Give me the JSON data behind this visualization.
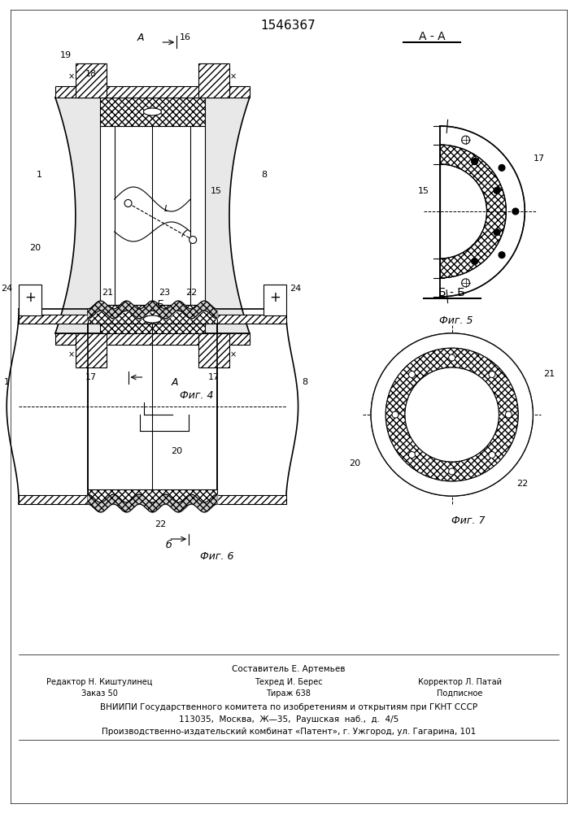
{
  "patent_number": "1546367",
  "bg": "#ffffff",
  "lc": "#000000",
  "fig4_label": "Фиг. 4",
  "fig5_label": "Фиг. 5",
  "fig6_label": "Фиг. 6",
  "fig7_label": "Фиг. 7",
  "section_aa": "A - A",
  "section_bb": "Б - Б",
  "footer_col1_line1": "Редактор Н. Киштулинец",
  "footer_col1_line2": "Заказ 50",
  "footer_col2_line1": "Составитель Е. Артемьев",
  "footer_col2_line2": "Техред И. Берес",
  "footer_col2_line3": "Тираж 638",
  "footer_col3_line1": "Корректор Л. Патай",
  "footer_col3_line2": "Подписное",
  "footer_vniip": "ВНИИПИ Государственного комитета по изобретениям и открытиям при ГКНТ СССР",
  "footer_addr": "113035,  Москва,  Ж—35,  Раушская  наб.,  д.  4/5",
  "footer_patent": "Производственно-издательский комбинат «Патент», г. Ужгород, ул. Гагарина, 101"
}
